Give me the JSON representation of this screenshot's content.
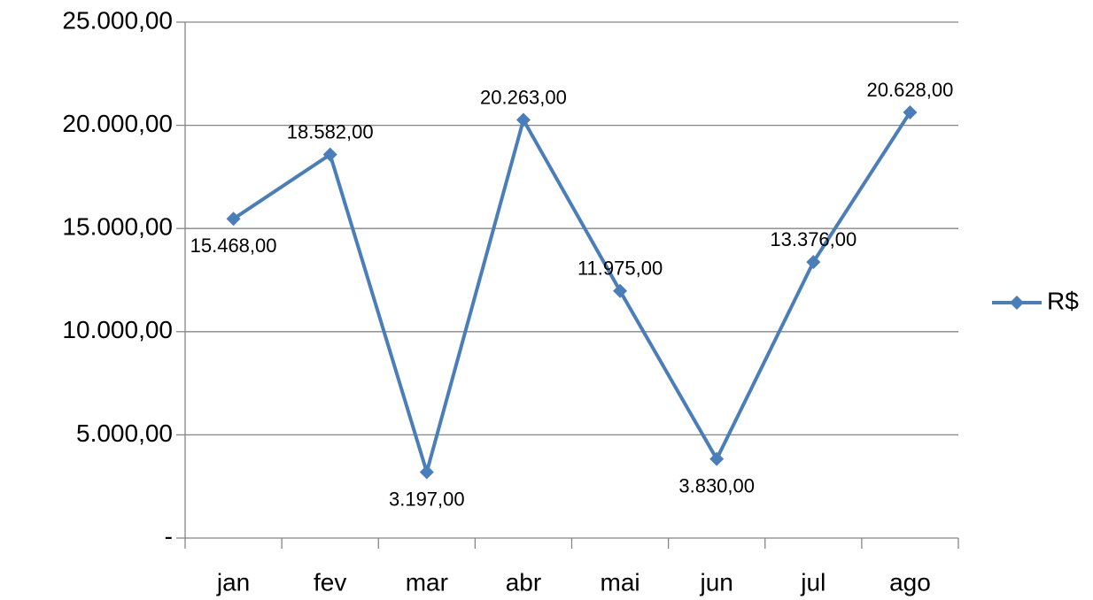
{
  "chart_data": {
    "type": "line",
    "categories": [
      "jan",
      "fev",
      "mar",
      "abr",
      "mai",
      "jun",
      "jul",
      "ago"
    ],
    "series": [
      {
        "name": "R$",
        "color": "#4a7ebb",
        "values": [
          15468,
          18582,
          3197,
          20263,
          11975,
          3830,
          13376,
          20628
        ],
        "value_labels": [
          "15.468,00",
          "18.582,00",
          "3.197,00",
          "20.263,00",
          "11.975,00",
          "3.830,00",
          "13.376,00",
          "20.628,00"
        ]
      }
    ],
    "ylim": [
      0,
      25000
    ],
    "yticks": [
      {
        "value": 0,
        "label": "-"
      },
      {
        "value": 5000,
        "label": "5.000,00"
      },
      {
        "value": 10000,
        "label": "10.000,00"
      },
      {
        "value": 15000,
        "label": "15.000,00"
      },
      {
        "value": 20000,
        "label": "20.000,00"
      },
      {
        "value": 25000,
        "label": "25.000,00"
      }
    ],
    "grid": true,
    "legend": "right"
  }
}
